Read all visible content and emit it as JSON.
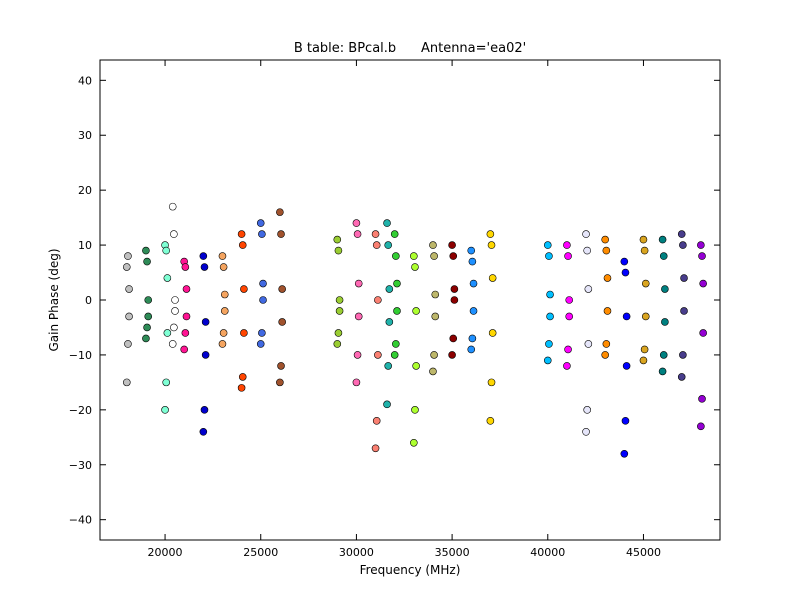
{
  "chart_data": {
    "type": "scatter",
    "title": "B table: BPcal.b      Antenna='ea02'",
    "xlabel": "Frequency (MHz)",
    "ylabel": "Gain Phase (deg)",
    "xlim": [
      16600,
      49000
    ],
    "ylim": [
      -43.7,
      43.7
    ],
    "xticks": [
      20000,
      25000,
      30000,
      35000,
      40000,
      45000
    ],
    "yticks": [
      {
        "value": -40,
        "label": "−40"
      },
      {
        "value": -30,
        "label": "−30"
      },
      {
        "value": -20,
        "label": "−20"
      },
      {
        "value": -10,
        "label": "−10"
      },
      0,
      10,
      20,
      30,
      40
    ],
    "grid": false,
    "series": [
      {
        "color": "#c0c0c0",
        "x": [
          18000,
          18000,
          18060,
          18060,
          18120,
          18120
        ],
        "values": [
          -15,
          6,
          -8,
          8,
          -3,
          2
        ]
      },
      {
        "color": "#2e8b57",
        "x": [
          19000,
          19000,
          19060,
          19060,
          19120,
          19120
        ],
        "values": [
          -7,
          9,
          -5,
          7,
          0,
          -3
        ]
      },
      {
        "color": "#7fffd4",
        "x": [
          20000,
          20000,
          20060,
          20060,
          20120,
          20120
        ],
        "values": [
          -20,
          10,
          -15,
          9,
          -6,
          4
        ]
      },
      {
        "color": "#ffffff",
        "x": [
          20400,
          20400,
          20460,
          20460,
          20520,
          20520
        ],
        "values": [
          -8,
          17,
          -5,
          12,
          0,
          -2
        ]
      },
      {
        "color": "#ff1493",
        "x": [
          21000,
          21000,
          21060,
          21060,
          21120,
          21120
        ],
        "values": [
          -9,
          7,
          -6,
          6,
          2,
          -3
        ]
      },
      {
        "color": "#0000cd",
        "x": [
          22000,
          22000,
          22060,
          22060,
          22120,
          22120
        ],
        "values": [
          -24,
          8,
          -20,
          6,
          -10,
          -4
        ]
      },
      {
        "color": "#f4a460",
        "x": [
          23000,
          23000,
          23060,
          23060,
          23120,
          23120
        ],
        "values": [
          -8,
          8,
          -6,
          6,
          1,
          -2
        ]
      },
      {
        "color": "#ff4500",
        "x": [
          24000,
          24000,
          24060,
          24060,
          24120,
          24120
        ],
        "values": [
          -16,
          12,
          -14,
          10,
          -6,
          2
        ]
      },
      {
        "color": "#4169e1",
        "x": [
          25000,
          25000,
          25060,
          25060,
          25120,
          25120
        ],
        "values": [
          -8,
          14,
          -6,
          12,
          0,
          3
        ]
      },
      {
        "color": "#a0522d",
        "x": [
          26000,
          26000,
          26060,
          26060,
          26120,
          26120
        ],
        "values": [
          -15,
          16,
          -12,
          12,
          -4,
          2
        ]
      },
      {
        "color": "#9acd32",
        "x": [
          29000,
          29000,
          29060,
          29060,
          29120,
          29120
        ],
        "values": [
          -8,
          11,
          -6,
          9,
          0,
          -2
        ]
      },
      {
        "color": "#ff69b4",
        "x": [
          30000,
          30000,
          30060,
          30060,
          30120,
          30120
        ],
        "values": [
          -15,
          14,
          -10,
          12,
          -3,
          3
        ]
      },
      {
        "color": "#fa8072",
        "x": [
          31000,
          31000,
          31060,
          31060,
          31120,
          31120
        ],
        "values": [
          -27,
          12,
          -22,
          10,
          -10,
          0
        ]
      },
      {
        "color": "#20b2aa",
        "x": [
          31600,
          31600,
          31660,
          31660,
          31720,
          31720
        ],
        "values": [
          -19,
          14,
          -12,
          10,
          -4,
          2
        ]
      },
      {
        "color": "#32cd32",
        "x": [
          32000,
          32000,
          32060,
          32060,
          32120,
          32120
        ],
        "values": [
          -10,
          12,
          -8,
          8,
          -2,
          3
        ]
      },
      {
        "color": "#adff2f",
        "x": [
          33000,
          33000,
          33060,
          33060,
          33120,
          33120
        ],
        "values": [
          -26,
          8,
          -20,
          6,
          -12,
          -2
        ]
      },
      {
        "color": "#bdb76b",
        "x": [
          34000,
          34000,
          34060,
          34060,
          34120,
          34120
        ],
        "values": [
          -13,
          10,
          -10,
          8,
          -3,
          1
        ]
      },
      {
        "color": "#8b0000",
        "x": [
          35000,
          35000,
          35060,
          35060,
          35120,
          35120
        ],
        "values": [
          -10,
          10,
          -7,
          8,
          0,
          2
        ]
      },
      {
        "color": "#1e90ff",
        "x": [
          36000,
          36000,
          36060,
          36060,
          36120,
          36120
        ],
        "values": [
          -9,
          9,
          -7,
          7,
          -2,
          3
        ]
      },
      {
        "color": "#ffd700",
        "x": [
          37000,
          37000,
          37060,
          37060,
          37120,
          37120
        ],
        "values": [
          -22,
          12,
          -15,
          10,
          -6,
          4
        ]
      },
      {
        "color": "#00bfff",
        "x": [
          40000,
          40000,
          40060,
          40060,
          40120,
          40120
        ],
        "values": [
          -11,
          10,
          -8,
          8,
          -3,
          1
        ]
      },
      {
        "color": "#ff00ff",
        "x": [
          41000,
          41000,
          41060,
          41060,
          41120,
          41120
        ],
        "values": [
          -12,
          10,
          -9,
          8,
          0,
          -3
        ]
      },
      {
        "color": "#e6e6fa",
        "x": [
          42000,
          42000,
          42060,
          42060,
          42120,
          42120
        ],
        "values": [
          -24,
          12,
          -20,
          9,
          -8,
          2
        ]
      },
      {
        "color": "#ff8c00",
        "x": [
          43000,
          43000,
          43060,
          43060,
          43120,
          43120
        ],
        "values": [
          -10,
          11,
          -8,
          9,
          -2,
          4
        ]
      },
      {
        "color": "#0000ff",
        "x": [
          44000,
          44000,
          44060,
          44060,
          44120,
          44120
        ],
        "values": [
          -28,
          7,
          -22,
          5,
          -12,
          -3
        ]
      },
      {
        "color": "#daa520",
        "x": [
          45000,
          45000,
          45060,
          45060,
          45120,
          45120
        ],
        "values": [
          -11,
          11,
          -9,
          9,
          -3,
          3
        ]
      },
      {
        "color": "#008080",
        "x": [
          46000,
          46000,
          46060,
          46060,
          46120,
          46120
        ],
        "values": [
          -13,
          11,
          -10,
          8,
          -4,
          2
        ]
      },
      {
        "color": "#483d8b",
        "x": [
          47000,
          47000,
          47060,
          47060,
          47120,
          47120
        ],
        "values": [
          -14,
          12,
          -10,
          10,
          -2,
          4
        ]
      },
      {
        "color": "#9400d3",
        "x": [
          48000,
          48000,
          48060,
          48060,
          48120,
          48120
        ],
        "values": [
          -23,
          10,
          -18,
          8,
          -6,
          3
        ]
      }
    ]
  }
}
